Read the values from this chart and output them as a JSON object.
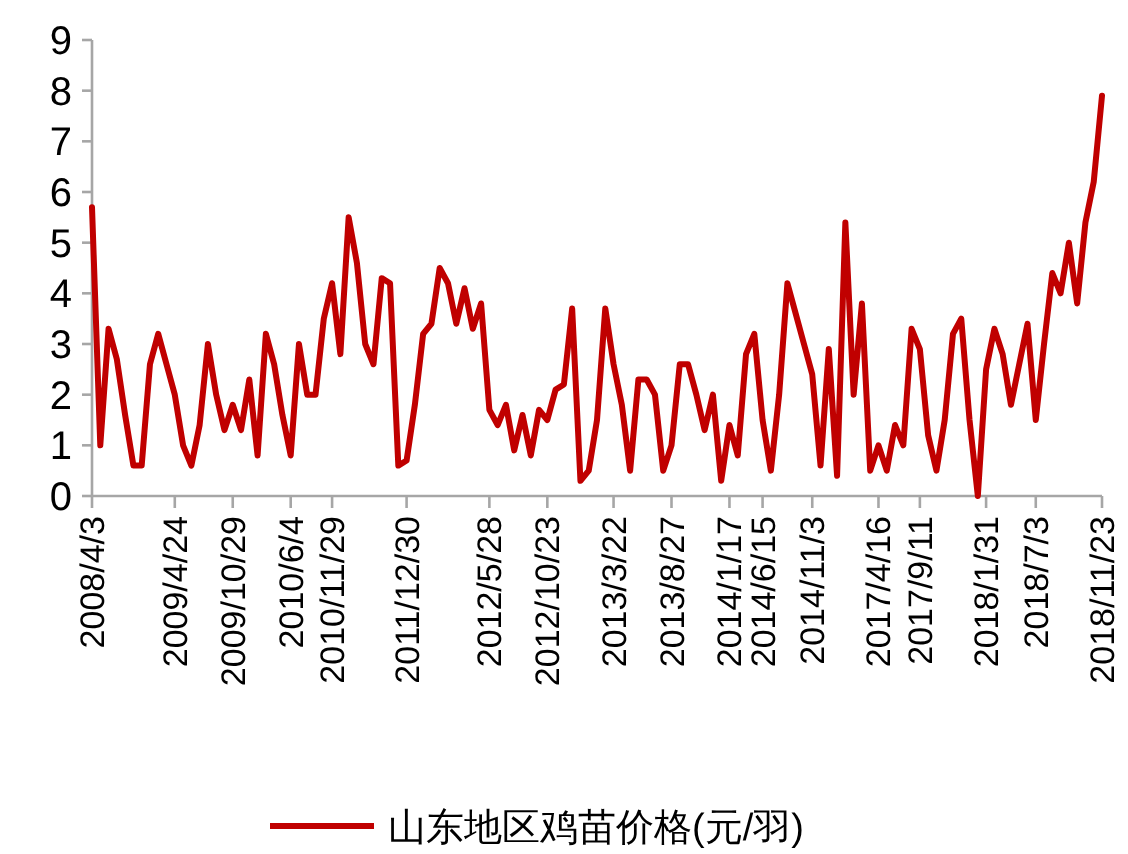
{
  "chart_data": {
    "type": "line",
    "categories": [
      "2008/4/3",
      null,
      null,
      null,
      null,
      null,
      null,
      null,
      null,
      null,
      "2009/4/24",
      null,
      null,
      null,
      null,
      null,
      null,
      "2009/10/29",
      null,
      null,
      null,
      null,
      null,
      null,
      "2010/6/4",
      null,
      null,
      null,
      null,
      "2010/11/29",
      null,
      null,
      null,
      null,
      null,
      null,
      null,
      null,
      "2011/12/30",
      null,
      null,
      null,
      null,
      null,
      null,
      null,
      null,
      null,
      "2012/5/28",
      null,
      null,
      null,
      null,
      null,
      null,
      "2012/10/23",
      null,
      null,
      null,
      null,
      null,
      null,
      null,
      "2013/3/22",
      null,
      null,
      null,
      null,
      null,
      null,
      "2013/8/27",
      null,
      null,
      null,
      null,
      null,
      null,
      "2014/1/17",
      null,
      null,
      null,
      "2014/6/15",
      null,
      null,
      null,
      null,
      null,
      "2014/11/3",
      null,
      null,
      null,
      null,
      null,
      null,
      null,
      "2017/4/16",
      null,
      null,
      null,
      null,
      "2017/9/11",
      null,
      null,
      null,
      null,
      null,
      null,
      null,
      "2018/1/31",
      null,
      null,
      null,
      null,
      null,
      "2018/7/3",
      null,
      null,
      null,
      null,
      null,
      null,
      null,
      "2018/11/23"
    ],
    "series": [
      {
        "name": "山东地区鸡苗价格(元/羽)",
        "color": "#c00000",
        "values": [
          5.7,
          1.0,
          3.3,
          2.7,
          1.6,
          0.6,
          0.6,
          2.6,
          3.2,
          2.6,
          2.0,
          1.0,
          0.6,
          1.4,
          3.0,
          2.0,
          1.3,
          1.8,
          1.3,
          2.3,
          0.8,
          3.2,
          2.6,
          1.6,
          0.8,
          3.0,
          2.0,
          2.0,
          3.5,
          4.2,
          2.8,
          5.5,
          4.6,
          3.0,
          2.6,
          4.3,
          4.2,
          0.6,
          0.7,
          1.8,
          3.2,
          3.4,
          4.5,
          4.2,
          3.4,
          4.1,
          3.3,
          3.8,
          1.7,
          1.4,
          1.8,
          0.9,
          1.6,
          0.8,
          1.7,
          1.5,
          2.1,
          2.2,
          3.7,
          0.3,
          0.5,
          1.5,
          3.7,
          2.6,
          1.8,
          0.5,
          2.3,
          2.3,
          2.0,
          0.5,
          1.0,
          2.6,
          2.6,
          2.0,
          1.3,
          2.0,
          0.3,
          1.4,
          0.8,
          2.8,
          3.2,
          1.5,
          0.5,
          2.0,
          4.2,
          3.6,
          3.0,
          2.4,
          0.6,
          2.9,
          0.4,
          5.4,
          2.0,
          3.8,
          0.5,
          1.0,
          0.5,
          1.4,
          1.0,
          3.3,
          2.9,
          1.2,
          0.5,
          1.5,
          3.2,
          3.5,
          1.5,
          0.0,
          2.5,
          3.3,
          2.8,
          1.8,
          2.6,
          3.4,
          1.5,
          3.0,
          4.4,
          4.0,
          5.0,
          3.8,
          5.4,
          6.2,
          7.9
        ]
      }
    ],
    "ylim": [
      0,
      9
    ],
    "yticks": [
      0,
      1,
      2,
      3,
      4,
      5,
      6,
      7,
      8,
      9
    ],
    "grid": false,
    "legend": "bottom"
  }
}
